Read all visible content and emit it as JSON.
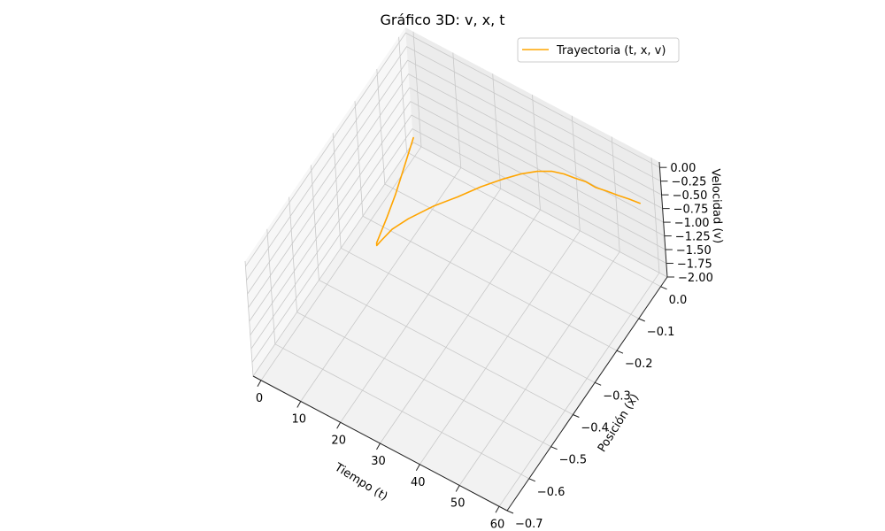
{
  "chart_data": {
    "type": "line",
    "projection": "3d",
    "title": "Gráfico 3D: v, x, t",
    "xlabel": "Tiempo (t)",
    "ylabel": "Posición (x)",
    "zlabel": "Velocidad (v)",
    "xlim": [
      -2,
      62
    ],
    "ylim": [
      -0.7,
      0.03
    ],
    "zlim": [
      -2.0,
      0.1
    ],
    "xticks": [
      "0",
      "10",
      "20",
      "30",
      "40",
      "50",
      "60"
    ],
    "yticks": [
      "0.0",
      "−0.1",
      "−0.2",
      "−0.3",
      "−0.4",
      "−0.5",
      "−0.6",
      "−0.7"
    ],
    "zticks": [
      "0.00",
      "−0.25",
      "−0.50",
      "−0.75",
      "−1.00",
      "−1.25",
      "−1.50",
      "−1.75",
      "−2.00"
    ],
    "grid": true,
    "legend_position": "top-right",
    "series": [
      {
        "name": "Trayectoria (t, x, v)",
        "color": "#ffa500",
        "points": [
          [
            0.0,
            0.0,
            -1.66
          ],
          [
            2.5,
            -0.09,
            -1.62
          ],
          [
            5.0,
            -0.17,
            -1.52
          ],
          [
            7.5,
            -0.25,
            -1.36
          ],
          [
            10.0,
            -0.32,
            -1.14
          ],
          [
            12.5,
            -0.38,
            -0.88
          ],
          [
            15.0,
            -0.42,
            -0.6
          ],
          [
            17.5,
            -0.44,
            -0.3
          ],
          [
            20.0,
            -0.43,
            -0.05
          ],
          [
            22.5,
            -0.4,
            0.06
          ],
          [
            25.0,
            -0.33,
            -0.02
          ],
          [
            27.5,
            -0.27,
            -0.11
          ],
          [
            30.0,
            -0.21,
            -0.18
          ],
          [
            32.5,
            -0.16,
            -0.24
          ],
          [
            35.0,
            -0.12,
            -0.28
          ],
          [
            37.5,
            -0.09,
            -0.31
          ],
          [
            40.0,
            -0.07,
            -0.33
          ],
          [
            42.5,
            -0.06,
            -0.34
          ],
          [
            45.0,
            -0.055,
            -0.35
          ],
          [
            47.5,
            -0.05,
            -0.35
          ],
          [
            50.0,
            -0.05,
            -0.36
          ],
          [
            52.5,
            -0.045,
            -0.36
          ],
          [
            55.0,
            -0.04,
            -0.37
          ],
          [
            57.5,
            -0.035,
            -0.37
          ],
          [
            60.0,
            -0.03,
            -0.38
          ]
        ]
      }
    ]
  }
}
